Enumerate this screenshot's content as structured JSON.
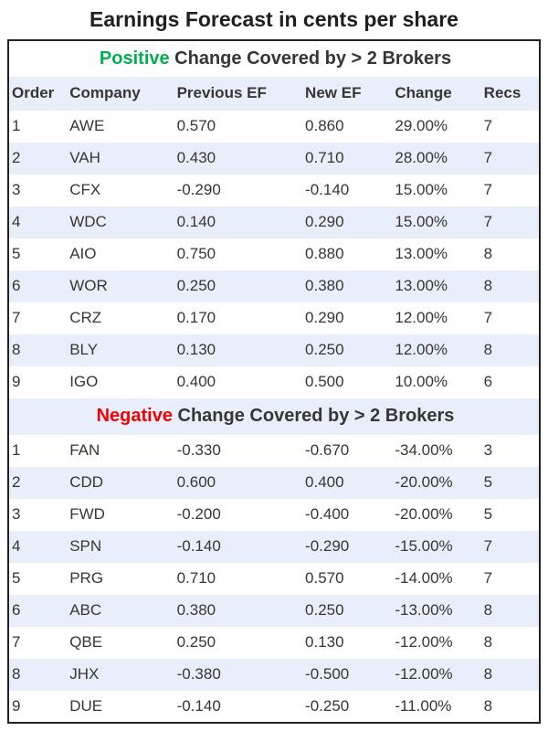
{
  "title": "Earnings Forecast in cents per share",
  "columns": [
    "Order",
    "Company",
    "Previous EF",
    "New EF",
    "Change",
    "Recs"
  ],
  "colors": {
    "stripe": "#E9EFFA",
    "border": "#222222",
    "positive": "#00B050",
    "negative": "#F50000",
    "text": "#363636",
    "title": "#1f1f1f"
  },
  "sections": [
    {
      "label_highlight": "Positive",
      "label_rest": " Change Covered by > 2 Brokers",
      "rows": [
        [
          "1",
          "AWE",
          "0.570",
          "0.860",
          "29.00%",
          "7"
        ],
        [
          "2",
          "VAH",
          "0.430",
          "0.710",
          "28.00%",
          "7"
        ],
        [
          "3",
          "CFX",
          "-0.290",
          "-0.140",
          "15.00%",
          "7"
        ],
        [
          "4",
          "WDC",
          "0.140",
          "0.290",
          "15.00%",
          "7"
        ],
        [
          "5",
          "AIO",
          "0.750",
          "0.880",
          "13.00%",
          "8"
        ],
        [
          "6",
          "WOR",
          "0.250",
          "0.380",
          "13.00%",
          "8"
        ],
        [
          "7",
          "CRZ",
          "0.170",
          "0.290",
          "12.00%",
          "7"
        ],
        [
          "8",
          "BLY",
          "0.130",
          "0.250",
          "12.00%",
          "8"
        ],
        [
          "9",
          "IGO",
          "0.400",
          "0.500",
          "10.00%",
          "6"
        ]
      ]
    },
    {
      "label_highlight": "Negative",
      "label_rest": " Change Covered by > 2 Brokers",
      "rows": [
        [
          "1",
          "FAN",
          "-0.330",
          "-0.670",
          "-34.00%",
          "3"
        ],
        [
          "2",
          "CDD",
          "0.600",
          "0.400",
          "-20.00%",
          "5"
        ],
        [
          "3",
          "FWD",
          "-0.200",
          "-0.400",
          "-20.00%",
          "5"
        ],
        [
          "4",
          "SPN",
          "-0.140",
          "-0.290",
          "-15.00%",
          "7"
        ],
        [
          "5",
          "PRG",
          "0.710",
          "0.570",
          "-14.00%",
          "7"
        ],
        [
          "6",
          "ABC",
          "0.380",
          "0.250",
          "-13.00%",
          "8"
        ],
        [
          "7",
          "QBE",
          "0.250",
          "0.130",
          "-12.00%",
          "8"
        ],
        [
          "8",
          "JHX",
          "-0.380",
          "-0.500",
          "-12.00%",
          "8"
        ],
        [
          "9",
          "DUE",
          "-0.140",
          "-0.250",
          "-11.00%",
          "8"
        ]
      ]
    }
  ]
}
